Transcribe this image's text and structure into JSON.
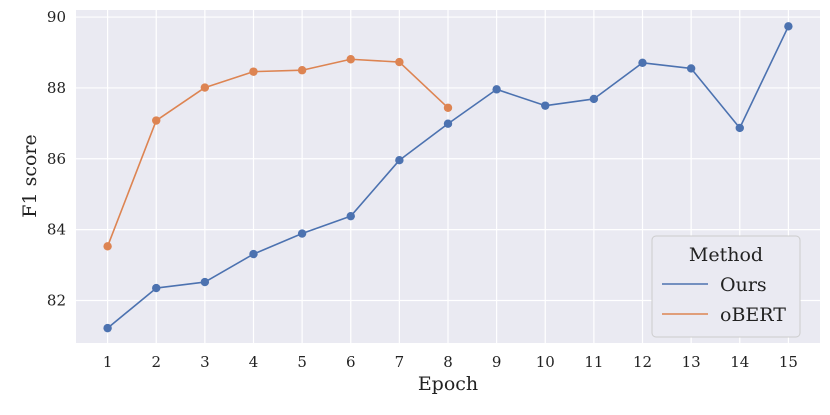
{
  "chart_data": {
    "type": "line",
    "xlabel": "Epoch",
    "ylabel": "F1 score",
    "x_ticks": [
      1,
      2,
      3,
      4,
      5,
      6,
      7,
      8,
      9,
      10,
      11,
      12,
      13,
      14,
      15
    ],
    "y_ticks": [
      82,
      84,
      86,
      88,
      90
    ],
    "xlim": [
      0.35,
      15.65
    ],
    "ylim": [
      80.8,
      90.2
    ],
    "grid": true,
    "legend": {
      "title": "Method",
      "placement": "bottom-right"
    },
    "series": [
      {
        "name": "Ours",
        "color": "#4c72b0",
        "x": [
          1,
          2,
          3,
          4,
          5,
          6,
          7,
          8,
          9,
          10,
          11,
          12,
          13,
          14,
          15
        ],
        "y": [
          81.22,
          82.35,
          82.52,
          83.31,
          83.89,
          84.38,
          85.96,
          86.99,
          87.96,
          87.5,
          87.69,
          88.71,
          88.55,
          86.87,
          89.74
        ]
      },
      {
        "name": "oBERT",
        "color": "#dd8452",
        "x": [
          1,
          2,
          3,
          4,
          5,
          6,
          7,
          8
        ],
        "y": [
          83.53,
          87.08,
          88.01,
          88.46,
          88.5,
          88.81,
          88.73,
          87.44
        ]
      }
    ]
  }
}
